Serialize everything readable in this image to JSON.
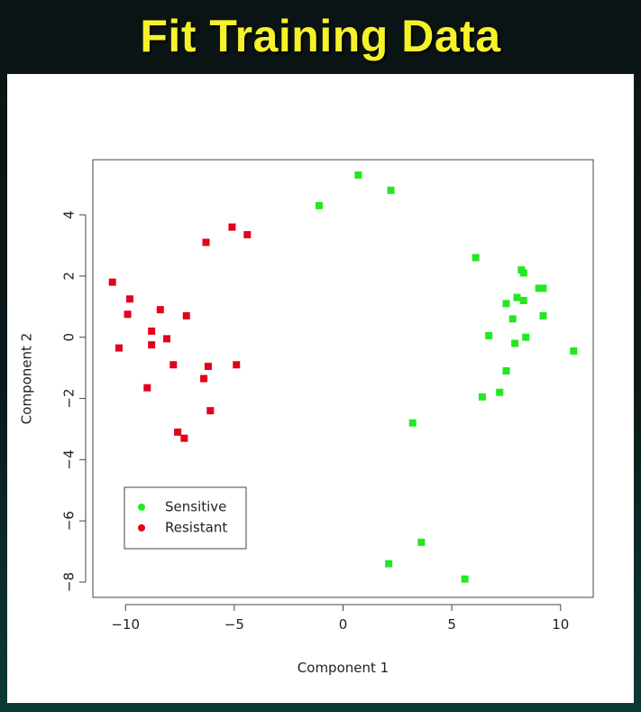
{
  "slide": {
    "title": "Fit Training Data"
  },
  "colors": {
    "title": "#f6f22a",
    "sensitive": "#22e822",
    "resistant": "#e2001a"
  },
  "chart_data": {
    "type": "scatter",
    "title": "",
    "xlabel": "Component 1",
    "ylabel": "Component 2",
    "xlim": [
      -11.5,
      11.5
    ],
    "ylim": [
      -8.5,
      5.8
    ],
    "xticks": [
      -10,
      -5,
      0,
      5,
      10
    ],
    "yticks": [
      -8,
      -6,
      -4,
      -2,
      0,
      2,
      4
    ],
    "grid": false,
    "legend": {
      "position": "bottom-left",
      "entries": [
        "Sensitive",
        "Resistant"
      ]
    },
    "series": [
      {
        "name": "Sensitive",
        "color": "#22e822",
        "points": [
          [
            0.7,
            5.3
          ],
          [
            2.2,
            4.8
          ],
          [
            -1.1,
            4.3
          ],
          [
            6.1,
            2.6
          ],
          [
            8.2,
            2.2
          ],
          [
            8.3,
            2.1
          ],
          [
            9.0,
            1.6
          ],
          [
            9.2,
            1.6
          ],
          [
            8.0,
            1.3
          ],
          [
            8.3,
            1.2
          ],
          [
            7.5,
            1.1
          ],
          [
            9.2,
            0.7
          ],
          [
            7.8,
            0.6
          ],
          [
            6.7,
            0.05
          ],
          [
            8.4,
            0.0
          ],
          [
            7.9,
            -0.2
          ],
          [
            10.6,
            -0.45
          ],
          [
            7.5,
            -1.1
          ],
          [
            6.4,
            -1.95
          ],
          [
            7.2,
            -1.8
          ],
          [
            3.2,
            -2.8
          ],
          [
            3.6,
            -6.7
          ],
          [
            2.1,
            -7.4
          ],
          [
            5.6,
            -7.9
          ]
        ]
      },
      {
        "name": "Resistant",
        "color": "#e2001a",
        "points": [
          [
            -5.1,
            3.6
          ],
          [
            -4.4,
            3.35
          ],
          [
            -6.3,
            3.1
          ],
          [
            -10.6,
            1.8
          ],
          [
            -9.8,
            1.25
          ],
          [
            -8.4,
            0.9
          ],
          [
            -9.9,
            0.75
          ],
          [
            -7.2,
            0.7
          ],
          [
            -8.8,
            0.2
          ],
          [
            -8.1,
            -0.05
          ],
          [
            -8.8,
            -0.25
          ],
          [
            -10.3,
            -0.35
          ],
          [
            -7.8,
            -0.9
          ],
          [
            -6.2,
            -0.95
          ],
          [
            -4.9,
            -0.9
          ],
          [
            -6.4,
            -1.35
          ],
          [
            -9.0,
            -1.65
          ],
          [
            -6.1,
            -2.4
          ],
          [
            -7.6,
            -3.1
          ],
          [
            -7.3,
            -3.3
          ]
        ]
      }
    ]
  }
}
